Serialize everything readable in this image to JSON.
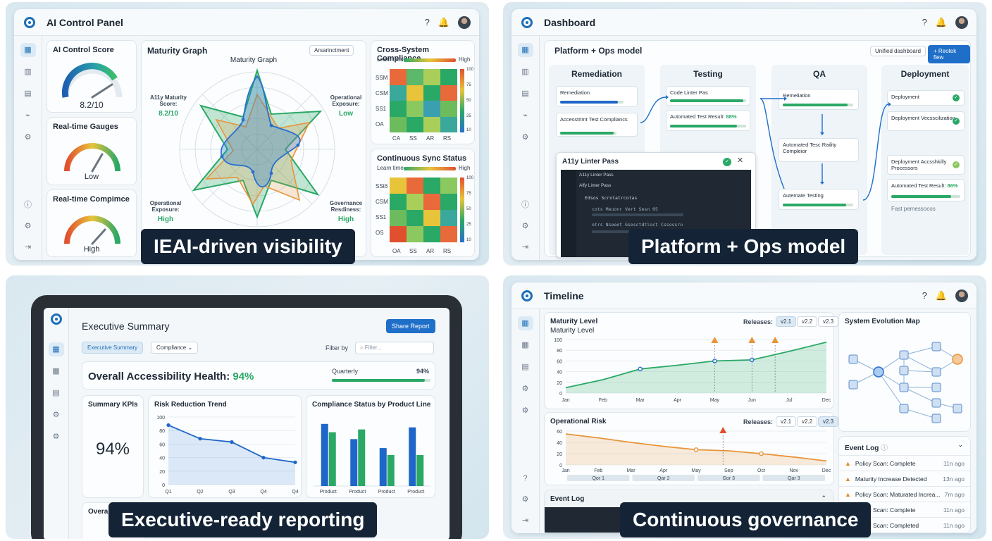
{
  "q1": {
    "title": "AI Control Panel",
    "caption": "IEAI-driven visibility",
    "score_card": {
      "title": "AI Control Score",
      "value": "8.2/10"
    },
    "gauges_card": {
      "title": "Real-time Gauges",
      "value": "Low"
    },
    "compliance_card": {
      "title": "Real-time Compimce",
      "value": "High"
    },
    "maturity": {
      "title": "Maturity Graph",
      "chart_title": "Maturity Graph",
      "button": "Arsarinctment",
      "a11y_label": "A11y Maturity Score:",
      "a11y_value": "8.2/10",
      "op_exposure_label": "Operational Exposure:",
      "op_exposure_value": "Low",
      "op_exposure2_label": "Operational Exposure:",
      "op_exposure2_value": "High",
      "gov_label": "Governance Resdiness:",
      "gov_value": "High"
    },
    "cross": {
      "title": "Cross-System Compliance",
      "legend_low": "Learn tims",
      "legend_high": "High",
      "rows": [
        "SSM",
        "CSM",
        "SS1",
        "OA"
      ],
      "cols": [
        "CA",
        "SS",
        "AR",
        "RS"
      ],
      "scale": [
        "100",
        "75",
        "50",
        "25",
        "10"
      ]
    },
    "sync": {
      "title": "Continuous Sync Status",
      "legend_low": "Learn time",
      "legend_high": "High",
      "rows": [
        "SSt6",
        "CSM",
        "SS1",
        "OS"
      ],
      "cols": [
        "OA",
        "SS",
        "AR",
        "RS"
      ],
      "scale": [
        "100",
        "75",
        "50",
        "25",
        "10"
      ]
    }
  },
  "q2": {
    "title": "Dashboard",
    "caption": "Platform + Ops model",
    "model_title": "Platform + Ops model",
    "unified_btn": "Unified dashboard",
    "reset_btn": "+ Reotek flew",
    "remediation": {
      "title": "Remediation",
      "box1": "Remediation",
      "box2": "Accesstrimt Test Compliancs"
    },
    "testing": {
      "title": "Testing",
      "box1": "Code Linter Pas",
      "box2_label": "Automated Test Result:",
      "box2_value": "88%"
    },
    "qa": {
      "title": "QA",
      "box1": "Remeliation",
      "box2": "Automated Tesc Raility Compleior",
      "box3": "Autemate Testing"
    },
    "deployment": {
      "title": "Deployment",
      "box1": "Deployment",
      "box2": "Deployment Vecsscilization",
      "box3": "Deployment Accsshkilly Processors",
      "box4_label": "Automated Test Result:",
      "box4_value": "86%",
      "box5": "Fast pemessocos"
    },
    "linter": {
      "title": "A11y Linter Pass",
      "tab1": "A11y Linter Pass",
      "tab2": "Affy Linter Pass",
      "line1": "Edsos Scrotatrcotas",
      "line2": "cots Meuonr Vert Sesn 05",
      "line3": "otrs Nseeet Gsesctdtloct Cssossro"
    }
  },
  "q3": {
    "caption": "Executive-ready reporting",
    "title": "Executive Summary",
    "share_btn": "Share Report",
    "tab1": "Executive Summary",
    "tab2": "Compliance",
    "filter_label": "Filter by",
    "filter_placeholder": "Filter...",
    "health_label": "Overall Accessibility Health:",
    "health_value": "94%",
    "quarterly_label": "Quarterly",
    "quarterly_value": "94%",
    "quarterly_pct": 94,
    "kpi_title": "Summary KPIs",
    "kpi_value": "94%",
    "overall_label": "Overal",
    "risk_title": "Risk Reduction Trend",
    "comp_title": "Compliance Status by Product Line",
    "chart_data": [
      {
        "type": "line",
        "title": "Risk Reduction Trend",
        "categories": [
          "Q1",
          "Q2",
          "Q3",
          "Q4",
          "Q4"
        ],
        "values": [
          88,
          68,
          63,
          40,
          33
        ],
        "ylim": [
          0,
          100
        ],
        "yticks": [
          "100",
          "80",
          "60",
          "40",
          "20",
          "0"
        ]
      },
      {
        "type": "bar",
        "title": "Compliance Status by Product Line",
        "categories": [
          "Product",
          "Product",
          "Product",
          "Product"
        ],
        "series": [
          {
            "values": [
              90,
              68,
              55,
              85
            ]
          },
          {
            "values": [
              78,
              82,
              45,
              45
            ]
          }
        ],
        "colors": [
          "#1f66c9",
          "#2aa866"
        ]
      }
    ]
  },
  "q4": {
    "title": "Timeline",
    "caption": "Continuous governance",
    "maturity_title": "Maturity Level",
    "maturity_subtitle": "Maturity Level",
    "releases_label": "Releases:",
    "releases": [
      "v2.1",
      "v2.2",
      "v2.3"
    ],
    "risk_title": "Operational Risk",
    "evo_title": "System Evolution Map",
    "event_log_title": "Event Log",
    "event_log_bottom": "Event Log",
    "events": [
      {
        "text": "Policy Scan: Complete",
        "time": "11n ago"
      },
      {
        "text": "Maturity Increase Detected",
        "time": "13n ago"
      },
      {
        "text": "Policy Scan: Maturated Increa...",
        "time": "7m ago"
      },
      {
        "text": "Policy Scan: Complete",
        "time": "11n ago"
      },
      {
        "text": "Policy Scan: Completed",
        "time": "11n ago"
      }
    ],
    "chart_data": [
      {
        "type": "area",
        "title": "Maturity Level",
        "categories": [
          "Jan",
          "Feb",
          "Mar",
          "Apr",
          "May",
          "Jun",
          "Jul",
          "Dec"
        ],
        "values": [
          10,
          25,
          45,
          52,
          60,
          62,
          78,
          95
        ],
        "ylim": [
          0,
          100
        ],
        "yticks": [
          "100",
          "80",
          "60",
          "40",
          "20",
          "0"
        ]
      },
      {
        "type": "area",
        "title": "Operational Risk",
        "categories": [
          "Jan",
          "Feb",
          "Mar",
          "Apr",
          "May",
          "Sep",
          "Oct",
          "Nov",
          "Dec"
        ],
        "values": [
          55,
          48,
          40,
          33,
          27,
          25,
          20,
          14,
          7
        ],
        "ylim": [
          0,
          60
        ],
        "yticks": [
          "60",
          "40",
          "20",
          "0"
        ],
        "quarters": [
          "Qor 1",
          "Qar 2",
          "Gor 3",
          "Qar 3"
        ]
      }
    ]
  }
}
